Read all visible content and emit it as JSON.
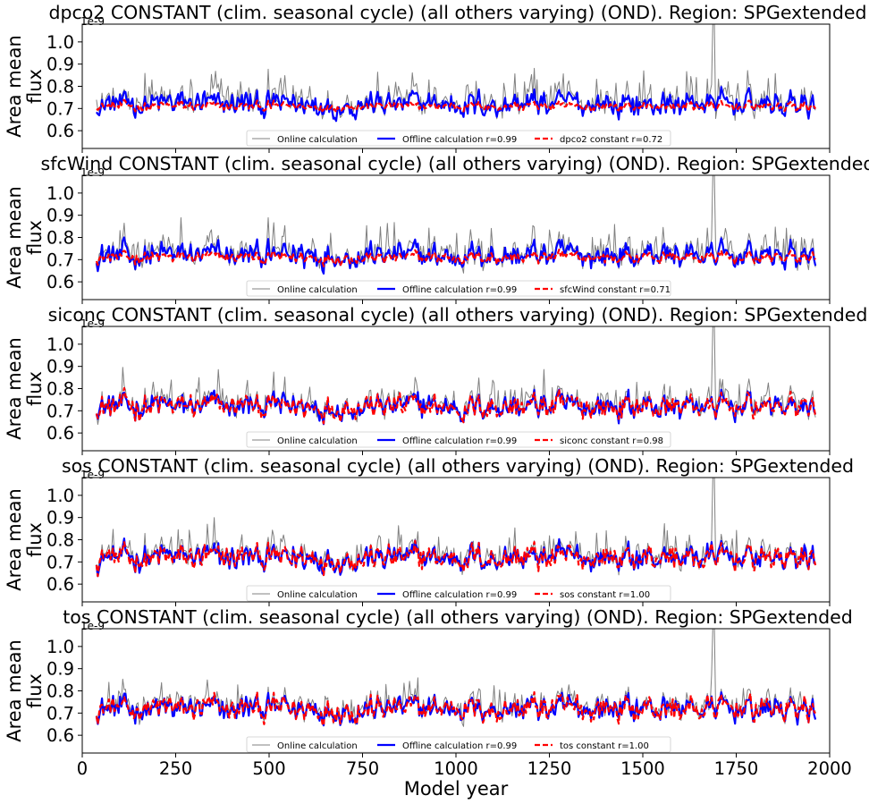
{
  "figure": {
    "xlabel": "Model year",
    "x_ticks": [
      "0",
      "250",
      "500",
      "750",
      "1000",
      "1250",
      "1500",
      "1750",
      "2000"
    ]
  },
  "chart_data": [
    {
      "type": "line",
      "title": "dpco2 CONSTANT (clim. seasonal cycle) (all others varying) (OND). Region: SPGextended",
      "ylabel": "Area mean flux",
      "y_multiplier": "1e-9",
      "xlim": [
        0,
        2000
      ],
      "ylim": [
        0.52,
        1.08
      ],
      "y_ticks": [
        0.6,
        0.7,
        0.8,
        0.9,
        1.0
      ],
      "x_range_of_series": [
        38,
        1962
      ],
      "legend": {
        "placement": "lower center"
      },
      "series": [
        {
          "name": "Online calculation",
          "color": "#808080",
          "style": "solid-thin",
          "mean": 0.73,
          "spread": 0.2
        },
        {
          "name": "Offline calculation r=0.99",
          "color": "#0000ff",
          "style": "solid",
          "mean": 0.72,
          "spread": 0.17
        },
        {
          "name": "dpco2 constant r=0.72",
          "color": "#ff0000",
          "style": "dashed",
          "mean": 0.71,
          "spread": 0.06
        }
      ]
    },
    {
      "type": "line",
      "title": "sfcWind CONSTANT (clim. seasonal cycle) (all others varying) (OND). Region: SPGextended",
      "ylabel": "Area mean flux",
      "y_multiplier": "1e-9",
      "xlim": [
        0,
        2000
      ],
      "ylim": [
        0.52,
        1.08
      ],
      "y_ticks": [
        0.6,
        0.7,
        0.8,
        0.9,
        1.0
      ],
      "x_range_of_series": [
        38,
        1962
      ],
      "legend": {
        "placement": "lower center"
      },
      "series": [
        {
          "name": "Online calculation",
          "color": "#808080",
          "style": "solid-thin",
          "mean": 0.73,
          "spread": 0.2
        },
        {
          "name": "Offline calculation r=0.99",
          "color": "#0000ff",
          "style": "solid",
          "mean": 0.72,
          "spread": 0.17
        },
        {
          "name": "sfcWind constant r=0.71",
          "color": "#ff0000",
          "style": "dashed",
          "mean": 0.71,
          "spread": 0.08
        }
      ]
    },
    {
      "type": "line",
      "title": "siconc CONSTANT (clim. seasonal cycle) (all others varying) (OND). Region: SPGextended",
      "ylabel": "Area mean flux",
      "y_multiplier": "1e-9",
      "xlim": [
        0,
        2000
      ],
      "ylim": [
        0.52,
        1.08
      ],
      "y_ticks": [
        0.6,
        0.7,
        0.8,
        0.9,
        1.0
      ],
      "x_range_of_series": [
        38,
        1962
      ],
      "legend": {
        "placement": "lower center"
      },
      "series": [
        {
          "name": "Online calculation",
          "color": "#808080",
          "style": "solid-thin",
          "mean": 0.73,
          "spread": 0.2
        },
        {
          "name": "Offline calculation r=0.99",
          "color": "#0000ff",
          "style": "solid",
          "mean": 0.72,
          "spread": 0.17
        },
        {
          "name": "siconc constant r=0.98",
          "color": "#ff0000",
          "style": "dashed",
          "mean": 0.72,
          "spread": 0.16
        }
      ]
    },
    {
      "type": "line",
      "title": "sos CONSTANT (clim. seasonal cycle) (all others varying) (OND). Region: SPGextended",
      "ylabel": "Area mean flux",
      "y_multiplier": "1e-9",
      "xlim": [
        0,
        2000
      ],
      "ylim": [
        0.52,
        1.08
      ],
      "y_ticks": [
        0.6,
        0.7,
        0.8,
        0.9,
        1.0
      ],
      "x_range_of_series": [
        38,
        1962
      ],
      "legend": {
        "placement": "lower center"
      },
      "series": [
        {
          "name": "Online calculation",
          "color": "#808080",
          "style": "solid-thin",
          "mean": 0.73,
          "spread": 0.2
        },
        {
          "name": "Offline calculation r=0.99",
          "color": "#0000ff",
          "style": "solid",
          "mean": 0.72,
          "spread": 0.17
        },
        {
          "name": "sos constant r=1.00",
          "color": "#ff0000",
          "style": "dashed",
          "mean": 0.72,
          "spread": 0.17
        }
      ]
    },
    {
      "type": "line",
      "title": "tos CONSTANT (clim. seasonal cycle) (all others varying) (OND). Region: SPGextended",
      "ylabel": "Area mean flux",
      "y_multiplier": "1e-9",
      "xlim": [
        0,
        2000
      ],
      "ylim": [
        0.52,
        1.08
      ],
      "y_ticks": [
        0.6,
        0.7,
        0.8,
        0.9,
        1.0
      ],
      "x_range_of_series": [
        38,
        1962
      ],
      "legend": {
        "placement": "lower center"
      },
      "series": [
        {
          "name": "Online calculation",
          "color": "#808080",
          "style": "solid-thin",
          "mean": 0.73,
          "spread": 0.2
        },
        {
          "name": "Offline calculation r=0.99",
          "color": "#0000ff",
          "style": "solid",
          "mean": 0.72,
          "spread": 0.17
        },
        {
          "name": "tos constant r=1.00",
          "color": "#ff0000",
          "style": "dashed",
          "mean": 0.72,
          "spread": 0.17
        }
      ]
    }
  ]
}
